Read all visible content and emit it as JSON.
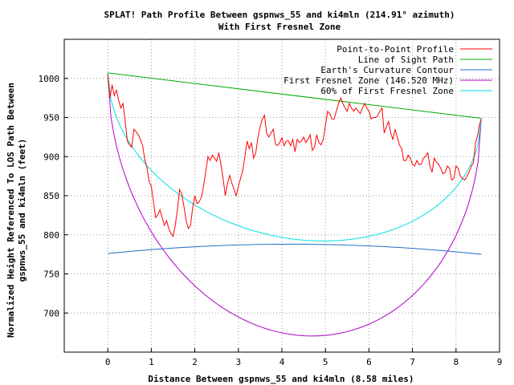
{
  "chart_data": {
    "type": "line",
    "title": "SPLAT! Path Profile Between gspnws_55 and ki4mln (214.91° azimuth)",
    "subtitle": "With First Fresnel Zone",
    "xlabel": "Distance Between gspnws_55 and ki4mln (8.58 miles)",
    "ylabel_line1": "Normalized Height Referenced To LOS Path Between",
    "ylabel_line2": "gspnws_55 and ki4mln (feet)",
    "xlim": [
      -1,
      9
    ],
    "ylim": [
      650,
      1050
    ],
    "x_ticks": [
      0,
      1,
      2,
      3,
      4,
      5,
      6,
      7,
      8,
      9
    ],
    "y_ticks": [
      700,
      750,
      800,
      850,
      900,
      950,
      1000
    ],
    "grid": true,
    "legend_position": "top-right",
    "series": [
      {
        "name": "Point-to-Point Profile",
        "color": "#ff0000",
        "points": [
          [
            0,
            1005
          ],
          [
            0.05,
            975
          ],
          [
            0.1,
            992
          ],
          [
            0.15,
            978
          ],
          [
            0.2,
            985
          ],
          [
            0.25,
            972
          ],
          [
            0.3,
            962
          ],
          [
            0.35,
            968
          ],
          [
            0.4,
            945
          ],
          [
            0.45,
            920
          ],
          [
            0.5,
            915
          ],
          [
            0.55,
            912
          ],
          [
            0.6,
            935
          ],
          [
            0.65,
            932
          ],
          [
            0.7,
            928
          ],
          [
            0.75,
            922
          ],
          [
            0.8,
            914
          ],
          [
            0.85,
            896
          ],
          [
            0.9,
            886
          ],
          [
            0.95,
            868
          ],
          [
            1.0,
            862
          ],
          [
            1.05,
            842
          ],
          [
            1.1,
            822
          ],
          [
            1.15,
            826
          ],
          [
            1.2,
            832
          ],
          [
            1.25,
            822
          ],
          [
            1.3,
            812
          ],
          [
            1.35,
            818
          ],
          [
            1.4,
            808
          ],
          [
            1.45,
            802
          ],
          [
            1.5,
            798
          ],
          [
            1.55,
            812
          ],
          [
            1.6,
            832
          ],
          [
            1.65,
            858
          ],
          [
            1.7,
            852
          ],
          [
            1.75,
            836
          ],
          [
            1.8,
            818
          ],
          [
            1.85,
            808
          ],
          [
            1.9,
            812
          ],
          [
            1.95,
            835
          ],
          [
            2.0,
            850
          ],
          [
            2.05,
            840
          ],
          [
            2.1,
            842
          ],
          [
            2.15,
            848
          ],
          [
            2.2,
            862
          ],
          [
            2.25,
            880
          ],
          [
            2.3,
            900
          ],
          [
            2.35,
            895
          ],
          [
            2.4,
            902
          ],
          [
            2.45,
            898
          ],
          [
            2.5,
            894
          ],
          [
            2.55,
            905
          ],
          [
            2.6,
            890
          ],
          [
            2.65,
            872
          ],
          [
            2.7,
            850
          ],
          [
            2.75,
            866
          ],
          [
            2.8,
            876
          ],
          [
            2.85,
            866
          ],
          [
            2.9,
            858
          ],
          [
            2.95,
            850
          ],
          [
            3.0,
            862
          ],
          [
            3.05,
            872
          ],
          [
            3.1,
            882
          ],
          [
            3.15,
            900
          ],
          [
            3.2,
            920
          ],
          [
            3.25,
            910
          ],
          [
            3.3,
            918
          ],
          [
            3.35,
            898
          ],
          [
            3.4,
            905
          ],
          [
            3.45,
            925
          ],
          [
            3.5,
            938
          ],
          [
            3.55,
            948
          ],
          [
            3.6,
            953
          ],
          [
            3.65,
            930
          ],
          [
            3.7,
            925
          ],
          [
            3.75,
            930
          ],
          [
            3.8,
            935
          ],
          [
            3.85,
            916
          ],
          [
            3.9,
            914
          ],
          [
            3.95,
            918
          ],
          [
            4.0,
            924
          ],
          [
            4.05,
            914
          ],
          [
            4.1,
            920
          ],
          [
            4.15,
            920
          ],
          [
            4.2,
            914
          ],
          [
            4.25,
            922
          ],
          [
            4.3,
            906
          ],
          [
            4.35,
            922
          ],
          [
            4.4,
            918
          ],
          [
            4.45,
            920
          ],
          [
            4.5,
            925
          ],
          [
            4.55,
            918
          ],
          [
            4.6,
            922
          ],
          [
            4.65,
            928
          ],
          [
            4.7,
            908
          ],
          [
            4.75,
            912
          ],
          [
            4.8,
            928
          ],
          [
            4.85,
            918
          ],
          [
            4.9,
            915
          ],
          [
            4.95,
            922
          ],
          [
            5.0,
            940
          ],
          [
            5.05,
            958
          ],
          [
            5.1,
            955
          ],
          [
            5.15,
            948
          ],
          [
            5.2,
            948
          ],
          [
            5.25,
            958
          ],
          [
            5.3,
            968
          ],
          [
            5.35,
            975
          ],
          [
            5.4,
            968
          ],
          [
            5.45,
            962
          ],
          [
            5.5,
            958
          ],
          [
            5.55,
            968
          ],
          [
            5.6,
            962
          ],
          [
            5.65,
            958
          ],
          [
            5.7,
            962
          ],
          [
            5.75,
            958
          ],
          [
            5.8,
            955
          ],
          [
            5.85,
            962
          ],
          [
            5.9,
            968
          ],
          [
            5.95,
            962
          ],
          [
            6.0,
            958
          ],
          [
            6.05,
            948
          ],
          [
            6.1,
            950
          ],
          [
            6.15,
            950
          ],
          [
            6.2,
            952
          ],
          [
            6.25,
            958
          ],
          [
            6.3,
            962
          ],
          [
            6.35,
            930
          ],
          [
            6.4,
            938
          ],
          [
            6.45,
            945
          ],
          [
            6.5,
            930
          ],
          [
            6.55,
            922
          ],
          [
            6.6,
            935
          ],
          [
            6.65,
            925
          ],
          [
            6.7,
            915
          ],
          [
            6.75,
            910
          ],
          [
            6.8,
            895
          ],
          [
            6.85,
            895
          ],
          [
            6.9,
            902
          ],
          [
            6.95,
            898
          ],
          [
            7.0,
            890
          ],
          [
            7.05,
            888
          ],
          [
            7.1,
            895
          ],
          [
            7.15,
            890
          ],
          [
            7.2,
            890
          ],
          [
            7.25,
            898
          ],
          [
            7.3,
            900
          ],
          [
            7.35,
            905
          ],
          [
            7.4,
            888
          ],
          [
            7.45,
            880
          ],
          [
            7.5,
            898
          ],
          [
            7.55,
            893
          ],
          [
            7.6,
            890
          ],
          [
            7.65,
            885
          ],
          [
            7.7,
            878
          ],
          [
            7.75,
            880
          ],
          [
            7.8,
            888
          ],
          [
            7.85,
            885
          ],
          [
            7.9,
            870
          ],
          [
            7.95,
            872
          ],
          [
            8.0,
            888
          ],
          [
            8.05,
            885
          ],
          [
            8.1,
            875
          ],
          [
            8.15,
            872
          ],
          [
            8.2,
            870
          ],
          [
            8.25,
            875
          ],
          [
            8.3,
            880
          ],
          [
            8.35,
            888
          ],
          [
            8.4,
            892
          ],
          [
            8.45,
            918
          ],
          [
            8.5,
            928
          ],
          [
            8.53,
            938
          ],
          [
            8.56,
            945
          ],
          [
            8.58,
            948
          ]
        ]
      },
      {
        "name": "Line of Sight Path",
        "color": "#00aa00",
        "points": [
          [
            0,
            1007
          ],
          [
            8.58,
            949
          ]
        ]
      },
      {
        "name": "Earth's Curvature Contour",
        "color": "#1e6ec8",
        "curve": "earth",
        "x_range": [
          0,
          8.58
        ],
        "start": 776,
        "end": 775,
        "peak": 788
      },
      {
        "name": "First Fresnel Zone (146.520 MHz)",
        "color": "#b000c8",
        "curve": "fresnel",
        "x_range": [
          0,
          8.58
        ],
        "fraction": 1.0,
        "depth": 306
      },
      {
        "name": "60% of First Fresnel Zone",
        "color": "#00e0e0",
        "curve": "fresnel",
        "x_range": [
          0,
          8.58
        ],
        "fraction": 0.6,
        "depth": 306
      }
    ]
  }
}
